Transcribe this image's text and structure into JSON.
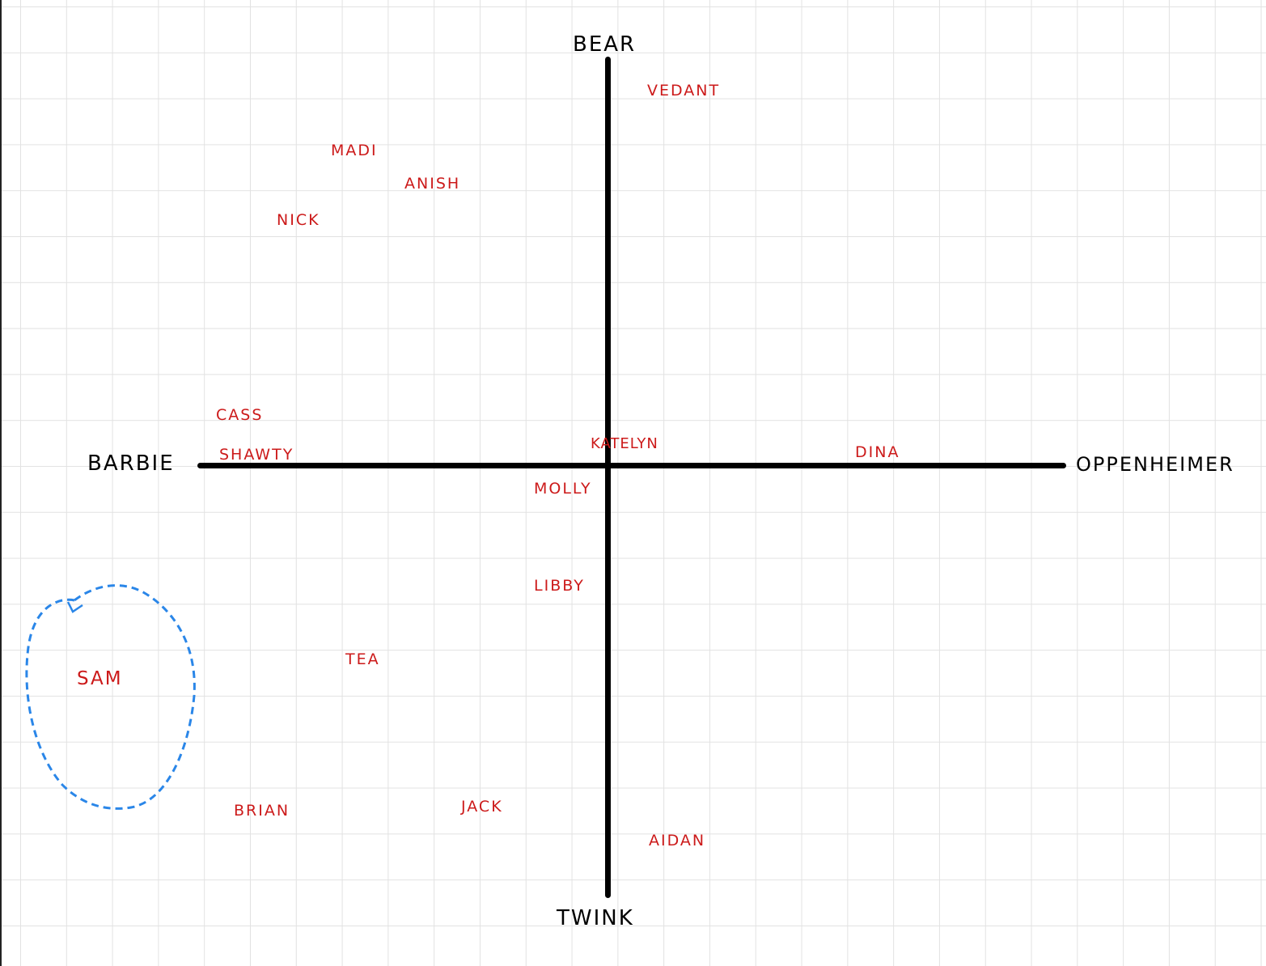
{
  "colors": {
    "axis": "#000000",
    "name": "#cc1a1a",
    "lasso": "#2a86e8",
    "grid": "#e2e2e2"
  },
  "axes": {
    "top": "BEAR",
    "bottom": "TWINK",
    "left": "BARBIE",
    "right": "OPPENHEIMER"
  },
  "names": {
    "vedant": "VEDANT",
    "madi": "MADI",
    "anish": "ANISH",
    "nick": "NICK",
    "cass": "CASS",
    "shawty": "SHAWTY",
    "katelyn": "KATELYN",
    "dina": "DINA",
    "molly": "MOLLY",
    "libby": "LIBBY",
    "tea": "TEA",
    "sam": "SAM",
    "brian": "BRIAN",
    "jack": "JACK",
    "aidan": "AIDAN"
  }
}
